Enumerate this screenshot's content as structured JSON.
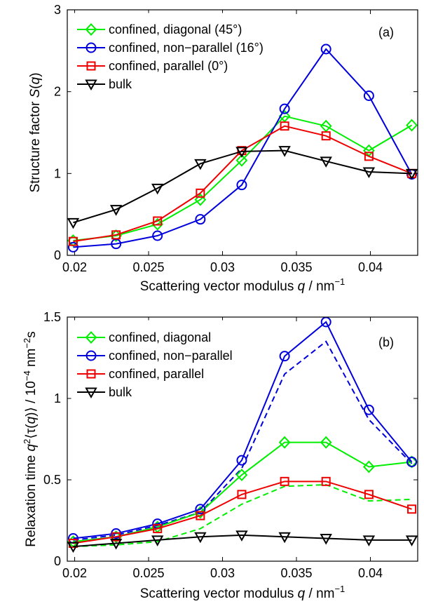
{
  "chart_data": [
    {
      "type": "line",
      "panel_label": "(a)",
      "xlabel": "Scattering vector modulus q / nm⁻¹",
      "ylabel": "Structure factor S(q)",
      "xlim": [
        0.0195,
        0.0432
      ],
      "ylim": [
        0,
        3
      ],
      "xticks": [
        0.02,
        0.025,
        0.03,
        0.035,
        0.04
      ],
      "xtick_labels": [
        "0.02",
        "0.025",
        "0.03",
        "0.035",
        "0.04"
      ],
      "yticks": [
        0,
        1,
        2,
        3
      ],
      "ytick_labels": [
        "0",
        "1",
        "2",
        "3"
      ],
      "grid": false,
      "legend_position": "top-left",
      "x": [
        0.0199,
        0.0228,
        0.0256,
        0.0285,
        0.0313,
        0.0342,
        0.037,
        0.0399,
        0.0428
      ],
      "series": [
        {
          "name": "confined, diagonal (45°)",
          "color": "#00ee00",
          "marker": "diamond",
          "values": [
            0.18,
            0.24,
            0.38,
            0.68,
            1.16,
            1.7,
            1.58,
            1.28,
            1.59
          ]
        },
        {
          "name": "confined, non−parallel (16°)",
          "color": "#0000dd",
          "marker": "circle",
          "values": [
            0.1,
            0.14,
            0.24,
            0.44,
            0.86,
            1.79,
            2.52,
            1.95,
            0.99
          ]
        },
        {
          "name": "confined, parallel (0°)",
          "color": "#ee0000",
          "marker": "square",
          "values": [
            0.17,
            0.25,
            0.42,
            0.76,
            1.28,
            1.58,
            1.46,
            1.21,
            1.0
          ]
        },
        {
          "name": "bulk",
          "color": "#000000",
          "marker": "triangle-down",
          "values": [
            0.4,
            0.56,
            0.82,
            1.12,
            1.27,
            1.28,
            1.15,
            1.02,
            1.0
          ]
        }
      ]
    },
    {
      "type": "line",
      "panel_label": "(b)",
      "xlabel": "Scattering vector modulus q / nm⁻¹",
      "ylabel": "Relaxation time q²⟨τ(q)⟩ / 10⁻⁴ nm⁻²s",
      "xlim": [
        0.0195,
        0.0432
      ],
      "ylim": [
        0,
        1.5
      ],
      "xticks": [
        0.02,
        0.025,
        0.03,
        0.035,
        0.04
      ],
      "xtick_labels": [
        "0.02",
        "0.025",
        "0.03",
        "0.035",
        "0.04"
      ],
      "yticks": [
        0,
        0.5,
        1,
        1.5
      ],
      "ytick_labels": [
        "0",
        "0.5",
        "1",
        "1.5"
      ],
      "grid": false,
      "legend_position": "top-left",
      "x": [
        0.0199,
        0.0228,
        0.0256,
        0.0285,
        0.0313,
        0.0342,
        0.037,
        0.0399,
        0.0428
      ],
      "series": [
        {
          "name": "confined, diagonal",
          "color": "#00ee00",
          "marker": "diamond",
          "values": [
            0.12,
            0.15,
            0.21,
            0.3,
            0.53,
            0.73,
            0.73,
            0.58,
            0.61
          ]
        },
        {
          "name": "confined, non−parallel",
          "color": "#0000dd",
          "marker": "circle",
          "values": [
            0.14,
            0.17,
            0.23,
            0.32,
            0.62,
            1.26,
            1.47,
            0.93,
            0.61
          ]
        },
        {
          "name": "confined, parallel",
          "color": "#ee0000",
          "marker": "square",
          "values": [
            0.11,
            0.15,
            0.2,
            0.28,
            0.41,
            0.49,
            0.49,
            0.41,
            0.32
          ]
        },
        {
          "name": "bulk",
          "color": "#000000",
          "marker": "triangle-down",
          "values": [
            0.09,
            0.11,
            0.13,
            0.15,
            0.16,
            0.15,
            0.14,
            0.13,
            0.13
          ]
        }
      ],
      "dashed_series": [
        {
          "color": "#0000dd",
          "values": [
            0.13,
            0.16,
            0.22,
            0.3,
            0.57,
            1.15,
            1.35,
            0.87,
            0.6
          ]
        },
        {
          "color": "#00ee00",
          "values": [
            0.09,
            0.1,
            0.12,
            0.2,
            0.35,
            0.46,
            0.47,
            0.37,
            0.38
          ]
        }
      ]
    }
  ]
}
